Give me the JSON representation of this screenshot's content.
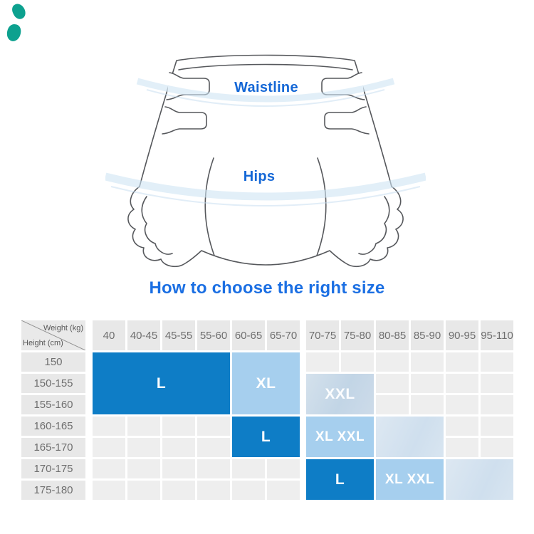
{
  "title": "How to choose the right size",
  "decor": {
    "accent_teal": "#0da18f"
  },
  "diagram": {
    "waistline_label": "Waistline",
    "hips_label": "Hips"
  },
  "size_chart": {
    "corner": {
      "weight_label": "Weight (kg)",
      "height_label": "Height (cm)"
    },
    "weight_columns": [
      "40",
      "40-45",
      "45-55",
      "55-60",
      "60-65",
      "65-70",
      "70-75",
      "75-80",
      "80-85",
      "85-90",
      "90-95",
      "95-110"
    ],
    "height_rows": [
      "150",
      "150-155",
      "155-160",
      "160-165",
      "165-170",
      "170-175",
      "175-180"
    ],
    "blocks": [
      {
        "label": "L"
      },
      {
        "label": "XL"
      },
      {
        "label": "XXL"
      },
      {
        "label": "L"
      },
      {
        "label": "XL XXL"
      },
      {
        "label": ""
      },
      {
        "label": "L"
      },
      {
        "label": "XL XXL"
      },
      {
        "label": ""
      }
    ],
    "colors": {
      "dark_blue": "#0e7dc6",
      "light_blue": "#a6cfee",
      "faded_blue": "#cfdfee"
    }
  },
  "chart_data": {
    "type": "table",
    "title": "How to choose the right size",
    "x_axis_label": "Weight (kg)",
    "y_axis_label": "Height (cm)",
    "columns": [
      "40",
      "40-45",
      "45-55",
      "55-60",
      "60-65",
      "65-70",
      "70-75",
      "75-80",
      "80-85",
      "85-90",
      "90-95",
      "95-110"
    ],
    "rows": [
      "150",
      "150-155",
      "155-160",
      "160-165",
      "165-170",
      "170-175",
      "175-180"
    ],
    "regions": [
      {
        "size": "L",
        "weight_range": [
          "40",
          "55-60"
        ],
        "height_range": [
          "150",
          "155-160"
        ],
        "style": "dark"
      },
      {
        "size": "XL",
        "weight_range": [
          "60-65",
          "65-70"
        ],
        "height_range": [
          "150",
          "155-160"
        ],
        "style": "light"
      },
      {
        "size": "XXL",
        "weight_range": [
          "70-75",
          "75-80"
        ],
        "height_range": [
          "150-155",
          "155-160"
        ],
        "style": "faded"
      },
      {
        "size": "L",
        "weight_range": [
          "60-65",
          "65-70"
        ],
        "height_range": [
          "160-165",
          "165-170"
        ],
        "style": "dark"
      },
      {
        "size": "XL XXL",
        "weight_range": [
          "70-75",
          "75-80"
        ],
        "height_range": [
          "160-165",
          "165-170"
        ],
        "style": "light"
      },
      {
        "size": "",
        "weight_range": [
          "80-85",
          "85-90"
        ],
        "height_range": [
          "160-165",
          "165-170"
        ],
        "style": "faded"
      },
      {
        "size": "L",
        "weight_range": [
          "70-75",
          "75-80"
        ],
        "height_range": [
          "170-175",
          "175-180"
        ],
        "style": "dark"
      },
      {
        "size": "XL XXL",
        "weight_range": [
          "80-85",
          "85-90"
        ],
        "height_range": [
          "170-175",
          "175-180"
        ],
        "style": "light"
      },
      {
        "size": "",
        "weight_range": [
          "90-95",
          "95-110"
        ],
        "height_range": [
          "170-175",
          "175-180"
        ],
        "style": "faded"
      }
    ]
  }
}
